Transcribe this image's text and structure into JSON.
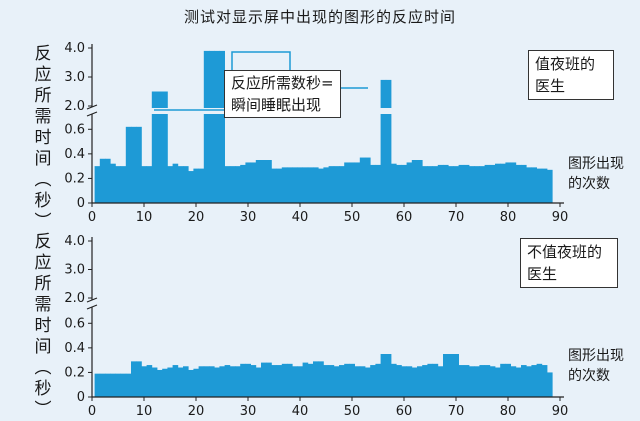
{
  "title": "测试对显示屏中出现的图形的反应时间",
  "callout": "反应所需数秒=\n瞬间睡眠出现",
  "chart_data": [
    {
      "type": "bar",
      "ylabel": "反应所需时间（秒）",
      "xlabel": "图形出现的次数",
      "legend": "值夜班的\n医生",
      "xlim": [
        0,
        90
      ],
      "xticks": [
        "0",
        "10",
        "20",
        "30",
        "40",
        "50",
        "60",
        "70",
        "80",
        "90"
      ],
      "yticks_low": [
        "0",
        "0.2",
        "0.4",
        "0.6"
      ],
      "yticks_high": [
        "2.0",
        "3.0",
        "4.0"
      ],
      "axis_break": [
        0.7,
        2.0
      ],
      "ylim_low": [
        0,
        0.7
      ],
      "ylim_high": [
        2.0,
        4.0
      ],
      "x": [
        1,
        2,
        3,
        4,
        5,
        6,
        7,
        8,
        9,
        10,
        11,
        12,
        13,
        14,
        15,
        16,
        17,
        18,
        19,
        20,
        21,
        22,
        23,
        24,
        25,
        26,
        27,
        28,
        29,
        30,
        31,
        32,
        33,
        34,
        35,
        36,
        37,
        38,
        39,
        40,
        41,
        42,
        43,
        44,
        45,
        46,
        47,
        48,
        49,
        50,
        51,
        52,
        53,
        54,
        55,
        56,
        57,
        58,
        59,
        60,
        61,
        62,
        63,
        64,
        65,
        66,
        67,
        68,
        69,
        70,
        71,
        72,
        73,
        74,
        75,
        76,
        77,
        78,
        79,
        80,
        81,
        82,
        83,
        84,
        85,
        86,
        87,
        88
      ],
      "values": [
        0.3,
        0.36,
        0.36,
        0.32,
        0.3,
        0.3,
        0.62,
        0.62,
        0.62,
        0.3,
        0.3,
        2.5,
        2.5,
        2.5,
        0.3,
        0.32,
        0.3,
        0.3,
        0.26,
        0.28,
        0.28,
        3.9,
        3.9,
        3.9,
        3.9,
        0.3,
        0.3,
        0.3,
        0.31,
        0.33,
        0.33,
        0.35,
        0.35,
        0.35,
        0.28,
        0.28,
        0.29,
        0.29,
        0.29,
        0.29,
        0.29,
        0.29,
        0.29,
        0.28,
        0.29,
        0.3,
        0.3,
        0.3,
        0.33,
        0.33,
        0.33,
        0.37,
        0.37,
        0.31,
        0.31,
        2.9,
        2.9,
        0.32,
        0.31,
        0.31,
        0.33,
        0.35,
        0.35,
        0.3,
        0.3,
        0.3,
        0.31,
        0.31,
        0.3,
        0.3,
        0.31,
        0.31,
        0.3,
        0.3,
        0.3,
        0.31,
        0.31,
        0.32,
        0.32,
        0.33,
        0.33,
        0.31,
        0.31,
        0.29,
        0.29,
        0.28,
        0.28,
        0.27
      ]
    },
    {
      "type": "bar",
      "ylabel": "反应所需时间（秒）",
      "xlabel": "图形出现的次数",
      "legend": "不值夜班的\n医生",
      "xlim": [
        0,
        90
      ],
      "xticks": [
        "0",
        "10",
        "20",
        "30",
        "40",
        "50",
        "60",
        "70",
        "80",
        "90"
      ],
      "yticks_low": [
        "0",
        "0.2",
        "0.4",
        "0.6"
      ],
      "yticks_high": [
        "2.0",
        "3.0",
        "4.0"
      ],
      "axis_break": [
        0.7,
        2.0
      ],
      "ylim_low": [
        0,
        0.7
      ],
      "ylim_high": [
        2.0,
        4.0
      ],
      "x": [
        1,
        2,
        3,
        4,
        5,
        6,
        7,
        8,
        9,
        10,
        11,
        12,
        13,
        14,
        15,
        16,
        17,
        18,
        19,
        20,
        21,
        22,
        23,
        24,
        25,
        26,
        27,
        28,
        29,
        30,
        31,
        32,
        33,
        34,
        35,
        36,
        37,
        38,
        39,
        40,
        41,
        42,
        43,
        44,
        45,
        46,
        47,
        48,
        49,
        50,
        51,
        52,
        53,
        54,
        55,
        56,
        57,
        58,
        59,
        60,
        61,
        62,
        63,
        64,
        65,
        66,
        67,
        68,
        69,
        70,
        71,
        72,
        73,
        74,
        75,
        76,
        77,
        78,
        79,
        80,
        81,
        82,
        83,
        84,
        85,
        86,
        87,
        88
      ],
      "values": [
        0.19,
        0.19,
        0.19,
        0.19,
        0.19,
        0.19,
        0.19,
        0.29,
        0.29,
        0.25,
        0.26,
        0.24,
        0.22,
        0.23,
        0.24,
        0.26,
        0.24,
        0.25,
        0.22,
        0.23,
        0.25,
        0.25,
        0.25,
        0.24,
        0.25,
        0.26,
        0.25,
        0.25,
        0.27,
        0.27,
        0.26,
        0.24,
        0.28,
        0.28,
        0.26,
        0.26,
        0.27,
        0.27,
        0.25,
        0.25,
        0.28,
        0.27,
        0.29,
        0.29,
        0.26,
        0.26,
        0.25,
        0.26,
        0.27,
        0.27,
        0.25,
        0.25,
        0.24,
        0.26,
        0.27,
        0.35,
        0.35,
        0.27,
        0.26,
        0.25,
        0.25,
        0.24,
        0.25,
        0.26,
        0.27,
        0.27,
        0.25,
        0.35,
        0.35,
        0.35,
        0.26,
        0.26,
        0.25,
        0.25,
        0.26,
        0.26,
        0.25,
        0.24,
        0.27,
        0.27,
        0.25,
        0.24,
        0.26,
        0.25,
        0.26,
        0.27,
        0.26,
        0.2
      ]
    }
  ]
}
